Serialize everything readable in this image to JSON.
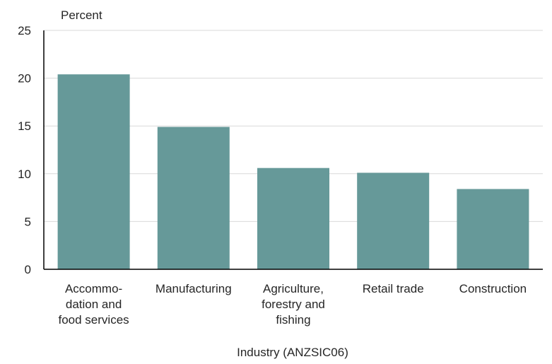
{
  "chart_data": {
    "type": "bar",
    "ylabel": "Percent",
    "xlabel": "Industry (ANZSIC06)",
    "ylim": [
      0,
      25
    ],
    "yticks": [
      0,
      5,
      10,
      15,
      20,
      25
    ],
    "grid": true,
    "legend": "none",
    "bar_color": "#669999",
    "categories": [
      [
        "Accommo-",
        "dation and",
        "food services"
      ],
      [
        "Manufacturing"
      ],
      [
        "Agriculture,",
        "forestry and",
        "fishing"
      ],
      [
        "Retail trade"
      ],
      [
        "Construction"
      ]
    ],
    "values": [
      20.4,
      14.9,
      10.6,
      10.1,
      8.4
    ]
  }
}
